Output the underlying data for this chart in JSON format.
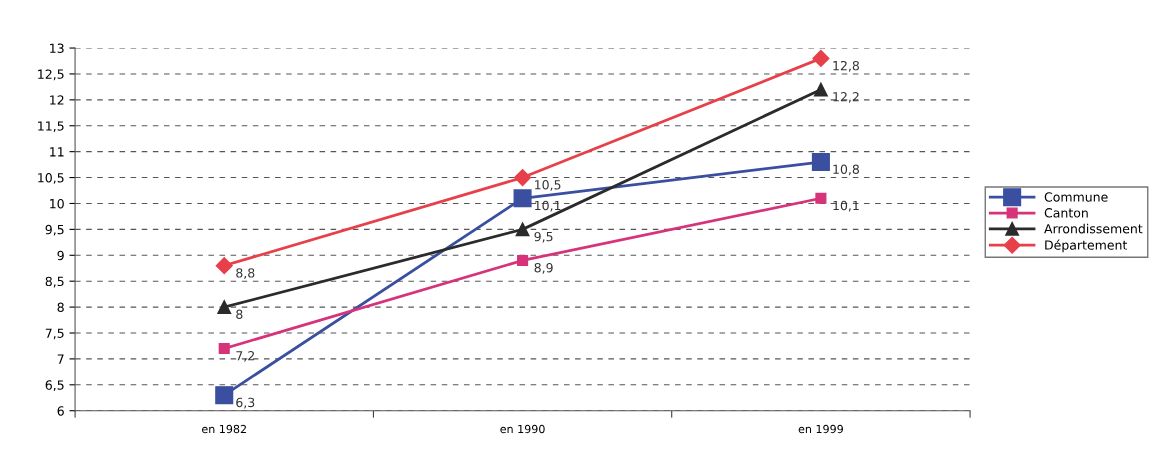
{
  "chart_data": {
    "type": "line",
    "categories": [
      "en 1982",
      "en 1990",
      "en 1999"
    ],
    "series": [
      {
        "name": "Commune",
        "color": "#3a4fa0",
        "marker": "square",
        "values": [
          6.3,
          10.1,
          10.8
        ],
        "value_labels": [
          "6,3",
          "10,1",
          "10,8"
        ]
      },
      {
        "name": "Canton",
        "color": "#d6337a",
        "marker": "square",
        "values": [
          7.2,
          8.9,
          10.1
        ],
        "value_labels": [
          "7,2",
          "8,9",
          "10,1"
        ]
      },
      {
        "name": "Arrondissement",
        "color": "#2b2b2b",
        "marker": "triangle",
        "values": [
          8,
          9.5,
          12.2
        ],
        "value_labels": [
          "8",
          "9,5",
          "12,2"
        ]
      },
      {
        "name": "Département",
        "color": "#e8404a",
        "marker": "diamond",
        "values": [
          8.8,
          10.5,
          12.8
        ],
        "value_labels": [
          "8,8",
          "10,5",
          "12,8"
        ]
      }
    ],
    "ylim": [
      6,
      13
    ],
    "yticks": [
      6,
      {
        "value": 6.5,
        "label": "6,5"
      },
      7,
      {
        "value": 7.5,
        "label": "7,5"
      },
      8,
      {
        "value": 8.5,
        "label": "8,5"
      },
      9,
      {
        "value": 9.5,
        "label": "9,5"
      },
      10,
      {
        "value": 10.5,
        "label": "10,5"
      },
      11,
      {
        "value": 11.5,
        "label": "11,5"
      },
      12,
      {
        "value": 12.5,
        "label": "12,5"
      },
      13
    ],
    "grid": "y",
    "legend": "right",
    "line_style": "solid"
  }
}
